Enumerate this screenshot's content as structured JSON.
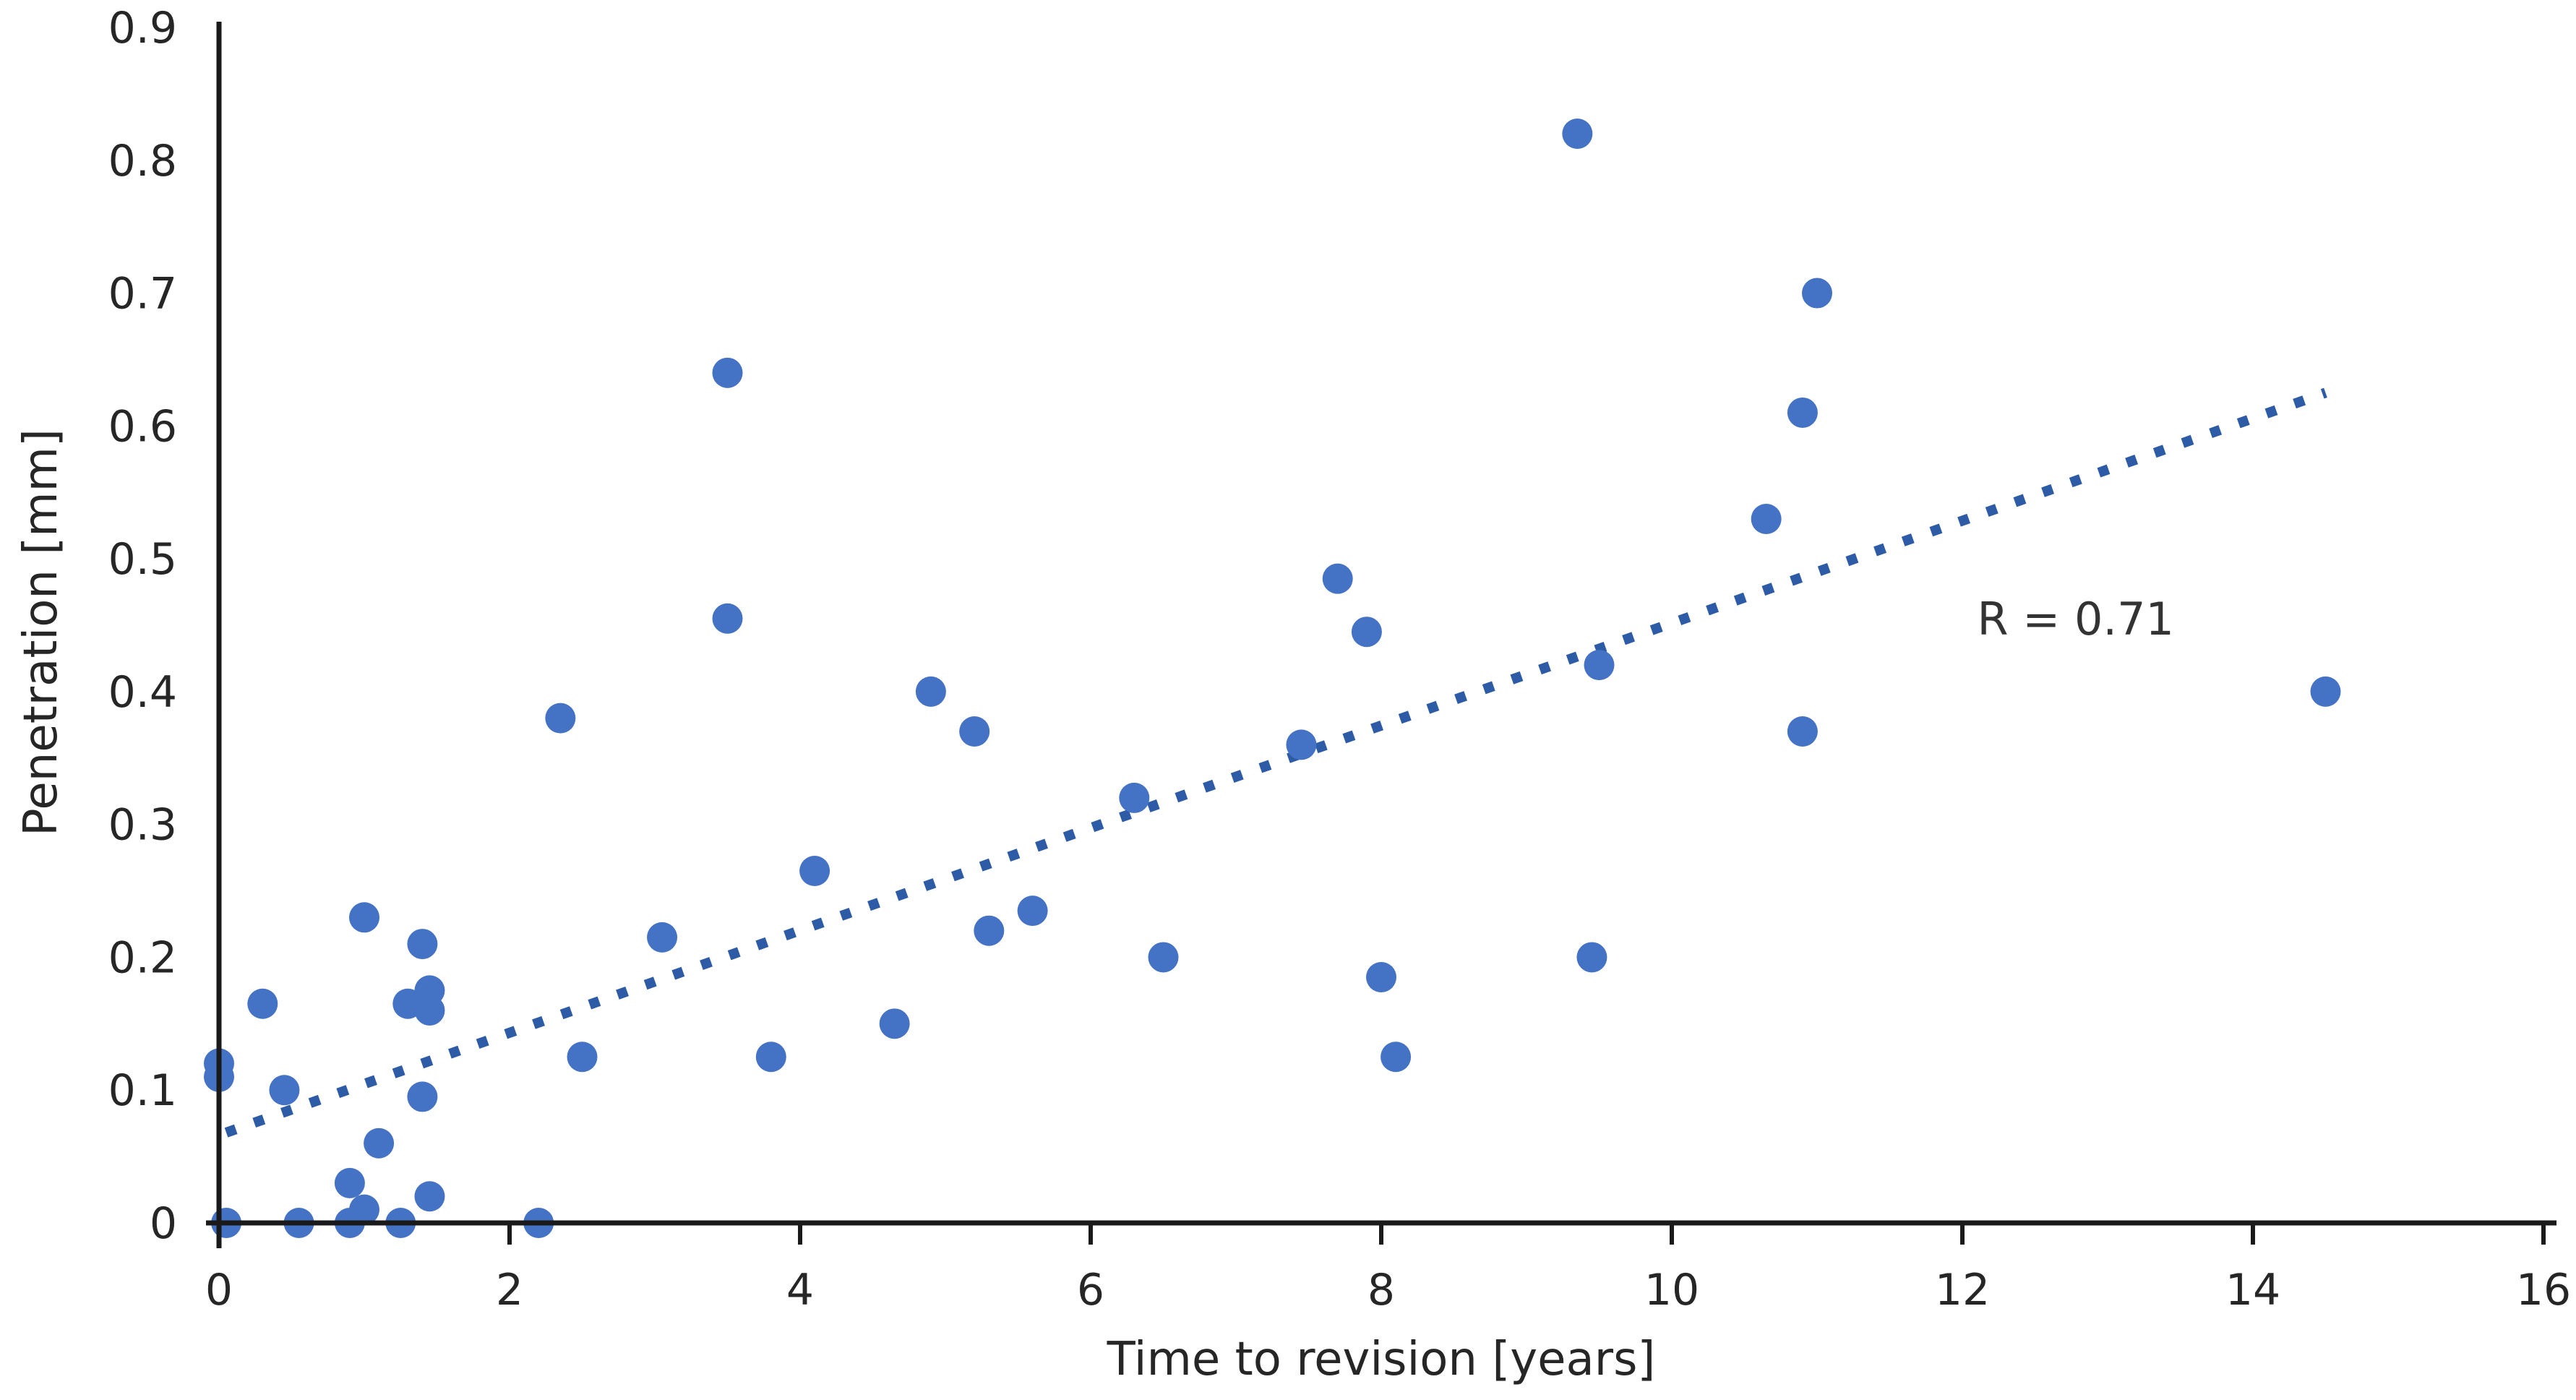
{
  "chart_data": {
    "type": "scatter",
    "title": "",
    "xlabel": "Time to revision [years]",
    "ylabel": "Penetration [mm]",
    "xlim": [
      0,
      16
    ],
    "ylim": [
      0,
      0.9
    ],
    "x_ticks": [
      0,
      2,
      4,
      6,
      8,
      10,
      12,
      14,
      16
    ],
    "x_tick_labels": [
      "0",
      "2",
      "4",
      "6",
      "8",
      "10",
      "12",
      "14",
      "16"
    ],
    "y_ticks": [
      0,
      0.1,
      0.2,
      0.3,
      0.4,
      0.5,
      0.6,
      0.7,
      0.8,
      0.9
    ],
    "y_tick_labels": [
      "0",
      "0.1",
      "0.2",
      "0.3",
      "0.4",
      "0.5",
      "0.6",
      "0.7",
      "0.8",
      "0.9"
    ],
    "grid": false,
    "legend": false,
    "annotation": {
      "text": "R = 0.71",
      "x": 12.78,
      "y": 0.455
    },
    "trendline": {
      "style": "dotted",
      "x1": 0.05,
      "y1": 0.068,
      "x2": 14.5,
      "y2": 0.625
    },
    "points": [
      [
        0.0,
        0.12
      ],
      [
        0.0,
        0.11
      ],
      [
        0.05,
        0.0
      ],
      [
        0.3,
        0.165
      ],
      [
        0.45,
        0.1
      ],
      [
        0.55,
        0.0
      ],
      [
        0.9,
        0.03
      ],
      [
        0.9,
        0.0
      ],
      [
        1.0,
        0.23
      ],
      [
        1.0,
        0.01
      ],
      [
        1.1,
        0.06
      ],
      [
        1.25,
        0.0
      ],
      [
        1.3,
        0.165
      ],
      [
        1.4,
        0.21
      ],
      [
        1.4,
        0.095
      ],
      [
        1.45,
        0.175
      ],
      [
        1.45,
        0.16
      ],
      [
        1.45,
        0.02
      ],
      [
        2.2,
        0.0
      ],
      [
        2.35,
        0.38
      ],
      [
        2.5,
        0.125
      ],
      [
        3.05,
        0.215
      ],
      [
        3.5,
        0.64
      ],
      [
        3.5,
        0.455
      ],
      [
        3.8,
        0.125
      ],
      [
        4.1,
        0.265
      ],
      [
        4.65,
        0.15
      ],
      [
        4.9,
        0.4
      ],
      [
        5.2,
        0.37
      ],
      [
        5.3,
        0.22
      ],
      [
        5.6,
        0.235
      ],
      [
        6.3,
        0.32
      ],
      [
        6.5,
        0.2
      ],
      [
        7.45,
        0.36
      ],
      [
        7.7,
        0.485
      ],
      [
        7.9,
        0.445
      ],
      [
        8.0,
        0.185
      ],
      [
        8.1,
        0.125
      ],
      [
        9.35,
        0.82
      ],
      [
        9.45,
        0.2
      ],
      [
        9.5,
        0.42
      ],
      [
        10.65,
        0.53
      ],
      [
        10.9,
        0.61
      ],
      [
        10.9,
        0.37
      ],
      [
        11.0,
        0.7
      ],
      [
        14.5,
        0.4
      ]
    ],
    "colors": {
      "point": "#4472c4",
      "trend": "#2d5ba6",
      "axis": "#1a1a1a",
      "text": "#262626"
    }
  }
}
